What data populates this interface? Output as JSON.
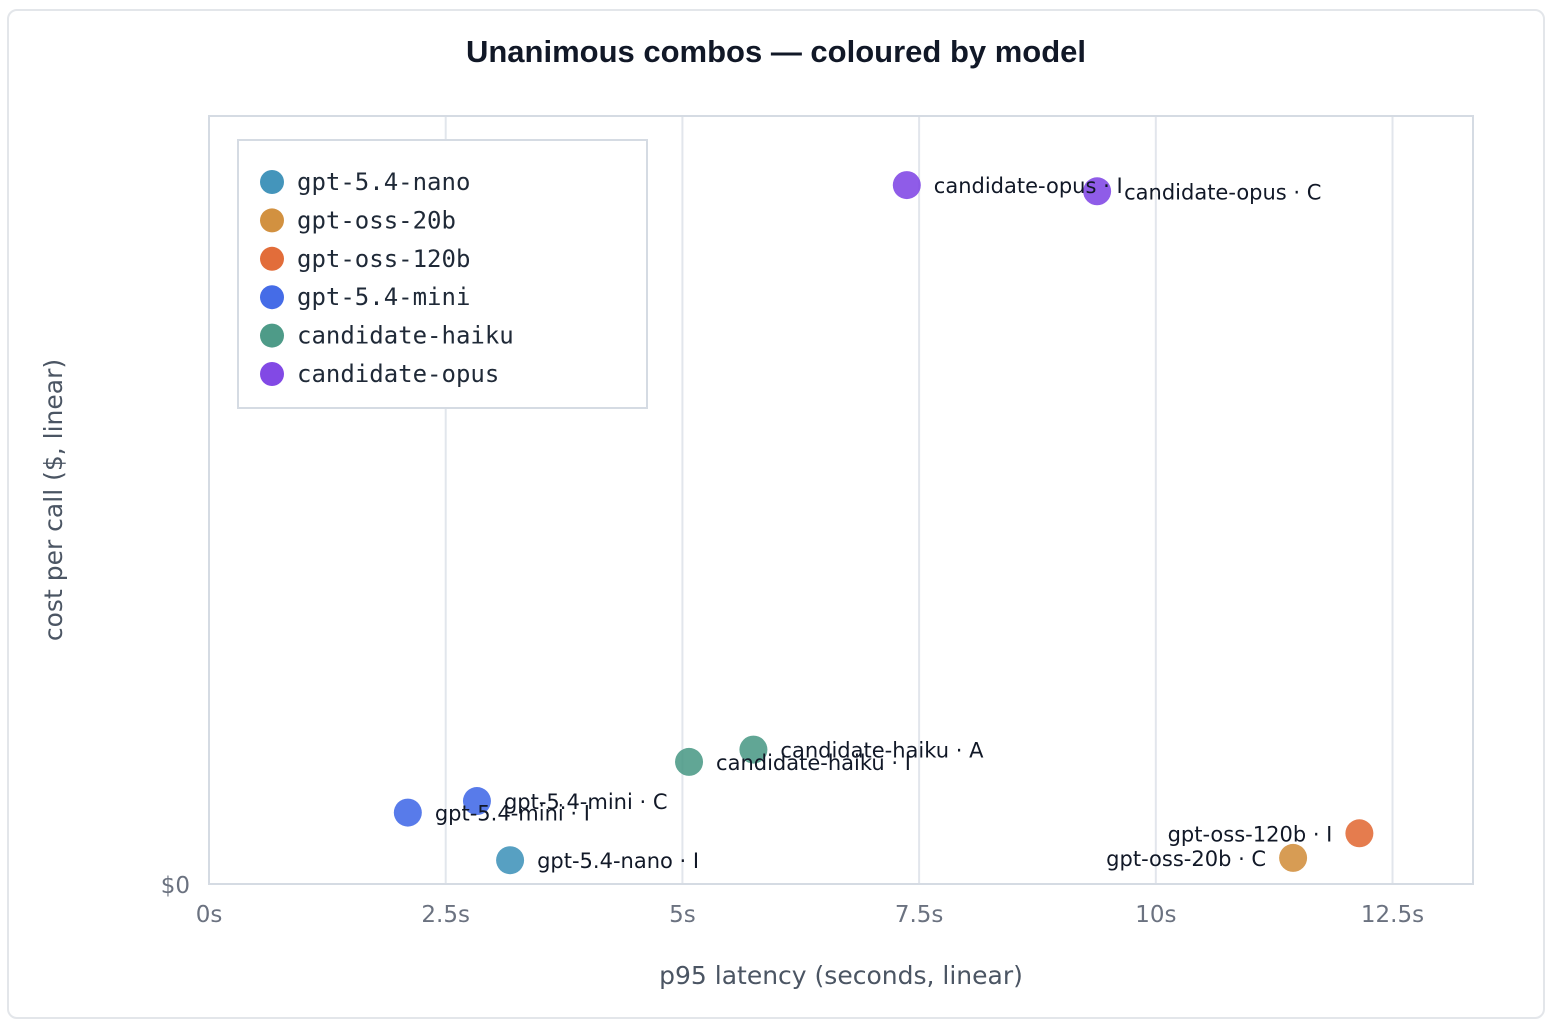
{
  "chart_data": {
    "type": "scatter",
    "title": "Unanimous combos — coloured by model",
    "xlabel": "p95 latency (seconds, linear)",
    "ylabel": "cost per call ($, linear)",
    "xlim": [
      0,
      13.35
    ],
    "ylim": [
      0,
      1
    ],
    "x_ticks": [
      {
        "value": 0,
        "label": "0s"
      },
      {
        "value": 2.5,
        "label": "2.5s"
      },
      {
        "value": 5,
        "label": "5s"
      },
      {
        "value": 7.5,
        "label": "7.5s"
      },
      {
        "value": 10,
        "label": "10s"
      },
      {
        "value": 12.5,
        "label": "12.5s"
      }
    ],
    "y_ticks": [
      {
        "value": 0,
        "label": "$0"
      }
    ],
    "grid": "vertical",
    "legend": {
      "placement": "top-left",
      "entries": [
        {
          "name": "gpt-5.4-nano",
          "color": "#3a8fb7"
        },
        {
          "name": "gpt-oss-20b",
          "color": "#d08b36"
        },
        {
          "name": "gpt-oss-120b",
          "color": "#e0652f"
        },
        {
          "name": "gpt-5.4-mini",
          "color": "#3b64e6"
        },
        {
          "name": "candidate-haiku",
          "color": "#459682"
        },
        {
          "name": "candidate-opus",
          "color": "#7b3fe4"
        }
      ]
    },
    "points": [
      {
        "label": "candidate-opus · I",
        "series": "candidate-opus",
        "x": 7.37,
        "y": 0.91,
        "anchor": "right"
      },
      {
        "label": "candidate-opus · C",
        "series": "candidate-opus",
        "x": 9.38,
        "y": 0.902,
        "anchor": "right"
      },
      {
        "label": "candidate-haiku · A",
        "series": "candidate-haiku",
        "x": 5.75,
        "y": 0.175,
        "anchor": "right"
      },
      {
        "label": "candidate-haiku · I",
        "series": "candidate-haiku",
        "x": 5.07,
        "y": 0.159,
        "anchor": "right"
      },
      {
        "label": "gpt-5.4-mini · C",
        "series": "gpt-5.4-mini",
        "x": 2.83,
        "y": 0.108,
        "anchor": "right"
      },
      {
        "label": "gpt-5.4-mini · I",
        "series": "gpt-5.4-mini",
        "x": 2.1,
        "y": 0.093,
        "anchor": "right"
      },
      {
        "label": "gpt-5.4-nano · I",
        "series": "gpt-5.4-nano",
        "x": 3.18,
        "y": 0.031,
        "anchor": "right"
      },
      {
        "label": "gpt-oss-120b · I",
        "series": "gpt-oss-120b",
        "x": 12.15,
        "y": 0.066,
        "anchor": "left"
      },
      {
        "label": "gpt-oss-20b · C",
        "series": "gpt-oss-20b",
        "x": 11.45,
        "y": 0.034,
        "anchor": "left"
      }
    ]
  }
}
